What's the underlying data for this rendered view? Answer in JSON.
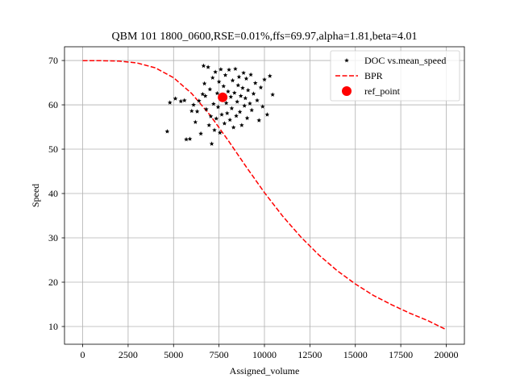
{
  "chart_data": {
    "type": "scatter",
    "title": "QBM 101 1800_0600,RSE=0.01%,ffs=69.97,alpha=1.81,beta=4.01",
    "xlabel": "Assigned_volume",
    "ylabel": "Speed",
    "xlim": [
      -1000,
      21000
    ],
    "ylim": [
      6.0,
      73.1
    ],
    "x_ticks": [
      0,
      2500,
      5000,
      7500,
      10000,
      12500,
      15000,
      17500,
      20000
    ],
    "y_ticks": [
      10,
      20,
      30,
      40,
      50,
      60,
      70
    ],
    "grid": true,
    "legend_position": "top-right",
    "ffs": 69.97,
    "alpha": 1.81,
    "beta": 4.01,
    "series": [
      {
        "name": "DOC vs.mean_speed",
        "kind": "scatter",
        "marker": "star",
        "color": "#000000",
        "points": [
          [
            4650,
            54.0
          ],
          [
            4800,
            60.5
          ],
          [
            5100,
            61.4
          ],
          [
            5400,
            60.8
          ],
          [
            5600,
            61.0
          ],
          [
            5700,
            52.2
          ],
          [
            5900,
            52.3
          ],
          [
            6000,
            58.6
          ],
          [
            6100,
            60.0
          ],
          [
            6200,
            56.1
          ],
          [
            6300,
            58.5
          ],
          [
            6400,
            60.9
          ],
          [
            6500,
            53.5
          ],
          [
            6600,
            62.4
          ],
          [
            6650,
            68.8
          ],
          [
            6700,
            64.8
          ],
          [
            6750,
            62.0
          ],
          [
            6800,
            59.0
          ],
          [
            6900,
            68.5
          ],
          [
            6950,
            55.4
          ],
          [
            7000,
            63.5
          ],
          [
            7050,
            57.4
          ],
          [
            7100,
            51.2
          ],
          [
            7150,
            66.1
          ],
          [
            7200,
            60.2
          ],
          [
            7250,
            54.3
          ],
          [
            7300,
            67.4
          ],
          [
            7350,
            56.9
          ],
          [
            7400,
            62.6
          ],
          [
            7450,
            59.5
          ],
          [
            7500,
            65.2
          ],
          [
            7550,
            53.7
          ],
          [
            7600,
            68.0
          ],
          [
            7650,
            57.8
          ],
          [
            7700,
            61.1
          ],
          [
            7750,
            64.2
          ],
          [
            7800,
            55.8
          ],
          [
            7850,
            66.7
          ],
          [
            7900,
            60.4
          ],
          [
            7950,
            58.1
          ],
          [
            8000,
            63.0
          ],
          [
            8050,
            67.9
          ],
          [
            8100,
            56.6
          ],
          [
            8150,
            61.8
          ],
          [
            8200,
            59.2
          ],
          [
            8250,
            65.5
          ],
          [
            8300,
            54.9
          ],
          [
            8350,
            62.7
          ],
          [
            8400,
            68.1
          ],
          [
            8450,
            57.5
          ],
          [
            8500,
            60.7
          ],
          [
            8550,
            64.4
          ],
          [
            8600,
            66.3
          ],
          [
            8650,
            58.4
          ],
          [
            8700,
            62.0
          ],
          [
            8750,
            55.4
          ],
          [
            8800,
            63.8
          ],
          [
            8850,
            67.2
          ],
          [
            8900,
            59.8
          ],
          [
            8950,
            61.5
          ],
          [
            9000,
            65.9
          ],
          [
            9050,
            57.0
          ],
          [
            9100,
            63.3
          ],
          [
            9200,
            60.3
          ],
          [
            9250,
            66.8
          ],
          [
            9300,
            58.8
          ],
          [
            9400,
            62.5
          ],
          [
            9500,
            64.9
          ],
          [
            9600,
            61.0
          ],
          [
            9700,
            56.5
          ],
          [
            9800,
            63.9
          ],
          [
            9900,
            59.6
          ],
          [
            10000,
            65.7
          ],
          [
            10150,
            57.8
          ],
          [
            10300,
            66.5
          ],
          [
            10450,
            62.3
          ]
        ]
      },
      {
        "name": "BPR",
        "kind": "line",
        "style": "dashed",
        "color": "#ff0000",
        "x": [
          0,
          1000,
          2000,
          3000,
          4000,
          5000,
          6000,
          7000,
          8000,
          9000,
          10000,
          11000,
          12000,
          13000,
          14000,
          15000,
          16000,
          17000,
          18000,
          19000,
          20000
        ],
        "y": [
          69.97,
          69.96,
          69.87,
          69.44,
          68.34,
          66.12,
          62.55,
          57.72,
          52.0,
          46.0,
          40.2,
          34.9,
          30.2,
          26.1,
          22.6,
          19.6,
          17.0,
          14.9,
          13.0,
          11.3,
          9.3
        ]
      },
      {
        "name": "ref_point",
        "kind": "point",
        "marker": "circle",
        "color": "#ff0000",
        "x": 7700,
        "y": 61.7
      }
    ]
  }
}
